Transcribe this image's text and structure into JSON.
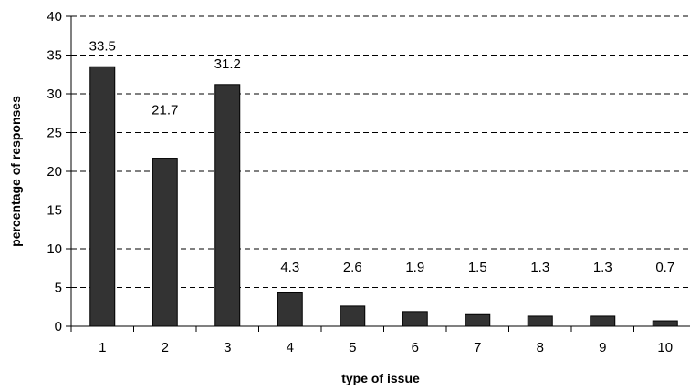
{
  "chart_data": {
    "type": "bar",
    "title": "",
    "xlabel": "type of issue",
    "ylabel": "percentage of responses",
    "categories": [
      "1",
      "2",
      "3",
      "4",
      "5",
      "6",
      "7",
      "8",
      "9",
      "10"
    ],
    "values": [
      33.5,
      21.7,
      31.2,
      4.3,
      2.6,
      1.9,
      1.5,
      1.3,
      1.3,
      0.7
    ],
    "data_labels": [
      "33.5",
      "21.7",
      "31.2",
      "4.3",
      "2.6",
      "1.9",
      "1.5",
      "1.3",
      "1.3",
      "0.7"
    ],
    "ylim": [
      0,
      40
    ],
    "yticks": [
      "0",
      "5",
      "10",
      "15",
      "20",
      "25",
      "30",
      "35",
      "40"
    ],
    "grid": "horizontal dashed",
    "legend": "none",
    "bar_color": "#333333"
  }
}
